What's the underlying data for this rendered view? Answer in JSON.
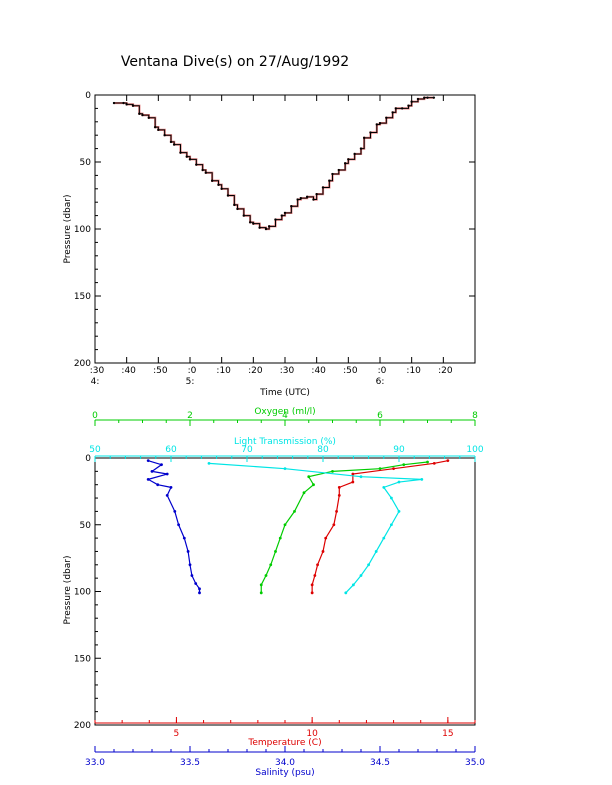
{
  "title": "Ventana Dive(s) on 27/Aug/1992",
  "colors": {
    "axis": "#000000",
    "time_trace": "#000000",
    "time_trace_highlight": "#cc0000",
    "salinity": "#0000cc",
    "temperature": "#dd0000",
    "oxygen": "#00cc00",
    "light_transmission": "#00e5e5"
  },
  "chart_data": [
    {
      "type": "line",
      "title": "Ventana Dive(s) on 27/Aug/1992",
      "xlabel": "Time (UTC)",
      "ylabel": "Pressure (dbar)",
      "y_inverted": true,
      "ylim": [
        0,
        200
      ],
      "y_ticks": [
        0,
        50,
        100,
        150,
        200
      ],
      "xlim_minutes": [
        -30,
        90
      ],
      "x_ticks": [
        {
          "min": -30,
          "label": ":30"
        },
        {
          "min": -20,
          "label": ":40"
        },
        {
          "min": -10,
          "label": ":50"
        },
        {
          "min": 0,
          "label": ":0"
        },
        {
          "min": 10,
          "label": ":10"
        },
        {
          "min": 20,
          "label": ":20"
        },
        {
          "min": 30,
          "label": ":30"
        },
        {
          "min": 40,
          "label": ":40"
        },
        {
          "min": 50,
          "label": ":50"
        },
        {
          "min": 60,
          "label": ":0"
        },
        {
          "min": 70,
          "label": ":10"
        },
        {
          "min": 80,
          "label": ":20"
        }
      ],
      "hour_labels": [
        {
          "min": -30,
          "label": "4:"
        },
        {
          "min": 0,
          "label": "5:"
        },
        {
          "min": 60,
          "label": "6:"
        }
      ],
      "series": [
        {
          "x_minutes": [
            -24,
            -21,
            -20,
            -18,
            -16,
            -15,
            -13,
            -11,
            -10,
            -8,
            -6,
            -5,
            -3,
            -1,
            0,
            2,
            4,
            5,
            7,
            9,
            10,
            12,
            14,
            15,
            17,
            19,
            20,
            22,
            24,
            25,
            27,
            29,
            30,
            32,
            34,
            35,
            37,
            39,
            40,
            42,
            44,
            45,
            47,
            49,
            50,
            52,
            54,
            55,
            57,
            59,
            60,
            62,
            64,
            65,
            67,
            69,
            70,
            72,
            74,
            75,
            77
          ],
          "y": [
            6,
            6,
            7,
            8,
            14,
            15,
            17,
            24,
            26,
            30,
            35,
            37,
            43,
            46,
            48,
            52,
            56,
            58,
            64,
            67,
            70,
            75,
            82,
            85,
            90,
            95,
            96,
            99,
            100,
            98,
            93,
            90,
            88,
            83,
            78,
            77,
            76,
            78,
            74,
            69,
            64,
            59,
            56,
            51,
            48,
            44,
            40,
            32,
            28,
            22,
            21,
            17,
            13,
            10,
            10,
            8,
            5,
            3,
            2,
            2,
            2
          ]
        }
      ]
    },
    {
      "type": "line",
      "ylabel": "Pressure (dbar)",
      "y_inverted": true,
      "ylim": [
        0,
        200
      ],
      "y_ticks": [
        0,
        50,
        100,
        150,
        200
      ],
      "axes": {
        "oxygen": {
          "label": "Oxygen (ml/l)",
          "range": [
            0,
            8
          ],
          "ticks": [
            0,
            2,
            4,
            6,
            8
          ],
          "position": "top"
        },
        "light_transmission": {
          "label": "Light Transmission (%)",
          "range": [
            50,
            100
          ],
          "ticks": [
            50,
            60,
            70,
            80,
            90,
            100
          ],
          "position": "top"
        },
        "temperature": {
          "label": "Temperature (C)",
          "range": [
            2,
            16
          ],
          "ticks": [
            5,
            10,
            15
          ],
          "position": "bottom"
        },
        "salinity": {
          "label": "Salinity (psu)",
          "range": [
            33.0,
            35.0
          ],
          "ticks": [
            33.0,
            33.5,
            34.0,
            34.5,
            35.0
          ],
          "tick_labels": [
            "33.0",
            "33.5",
            "34.0",
            "34.5",
            "35.0"
          ],
          "position": "bottom"
        }
      },
      "series": [
        {
          "name": "Salinity (psu)",
          "axis": "salinity",
          "x": [
            33.28,
            33.35,
            33.3,
            33.38,
            33.28,
            33.33,
            33.4,
            33.38,
            33.42,
            33.44,
            33.47,
            33.49,
            33.5,
            33.51,
            33.53,
            33.55,
            33.55
          ],
          "y": [
            2,
            5,
            10,
            12,
            16,
            20,
            22,
            28,
            40,
            50,
            60,
            70,
            80,
            88,
            94,
            98,
            101
          ]
        },
        {
          "name": "Temperature (C)",
          "axis": "temperature",
          "x": [
            15.0,
            14.5,
            13.0,
            11.5,
            11.5,
            11.0,
            11.0,
            10.9,
            10.8,
            10.5,
            10.4,
            10.2,
            10.1,
            10.0,
            10.0
          ],
          "y": [
            2,
            4,
            8,
            12,
            18,
            22,
            28,
            40,
            50,
            60,
            70,
            80,
            88,
            95,
            101
          ]
        },
        {
          "name": "Oxygen (ml/l)",
          "axis": "oxygen",
          "x": [
            7.0,
            6.5,
            6.0,
            5.0,
            4.5,
            4.6,
            4.4,
            4.2,
            4.0,
            3.9,
            3.8,
            3.7,
            3.6,
            3.5,
            3.5
          ],
          "y": [
            3,
            5,
            8,
            10,
            14,
            20,
            26,
            40,
            50,
            60,
            70,
            80,
            88,
            95,
            101
          ]
        },
        {
          "name": "Light Transmission (%)",
          "axis": "light_transmission",
          "x": [
            65,
            75,
            85,
            93,
            90,
            88,
            89,
            90,
            89,
            88,
            87,
            86,
            85,
            84,
            83
          ],
          "y": [
            4,
            8,
            14,
            16,
            18,
            22,
            30,
            40,
            50,
            60,
            70,
            80,
            88,
            95,
            101
          ]
        }
      ]
    }
  ]
}
